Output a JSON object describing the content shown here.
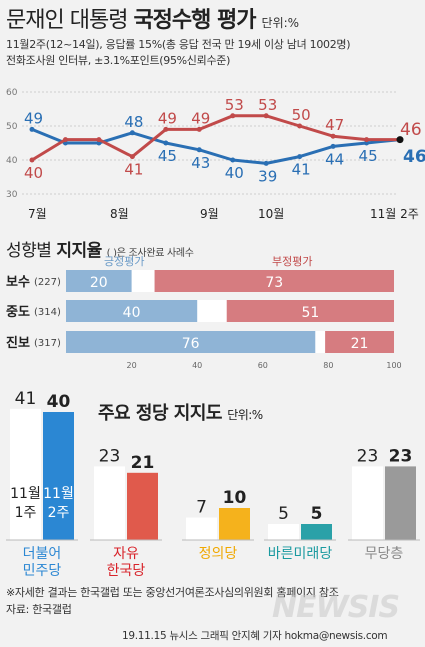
{
  "header": {
    "title_main": "문재인 대통령 ",
    "title_bold": "국정수행 평가",
    "unit": "단위:%",
    "note1": "11월2주(12~14일), 응답률 15%(총 응답 전국 만 19세 이상 남녀 1002명)",
    "note2": "전화조사원 인터뷰, ±3.1%포인트(95%신뢰수준)"
  },
  "line_section": {
    "y_ticks": [
      "60",
      "50",
      "40",
      "30"
    ],
    "x_labels": [
      "7월",
      "8월",
      "9월",
      "10월",
      "11월 2주"
    ],
    "end_labels": {
      "negative": "46",
      "positive": "46"
    }
  },
  "bar_section": {
    "title_pre": "성향별 ",
    "title_bold": "지지율",
    "title_note": "( )은 조사완료 사례수",
    "legend_pos": "긍정평가",
    "legend_neg": "부정평가",
    "x_ticks": [
      "20",
      "40",
      "60",
      "80",
      "100"
    ]
  },
  "party_section": {
    "title": "주요 정당 지지도",
    "unit": "단위:%",
    "week_prev": "11월 1주",
    "week_cur": "11월 2주"
  },
  "footer": {
    "note": "※자세한 결과는 한국갤럽 또는 중앙선거여론조사심의위원회 홈페이지 참조",
    "source": "자료: 한국갤럽",
    "credit": "19.11.15 뉴시스 그래픽 안지혜 기자 hokma@newsis.com",
    "watermark": "NEWSIS"
  },
  "colors": {
    "positive_line": "#2a6fb4",
    "negative_line": "#c14a4a",
    "bar_positive": "#8fb4d6",
    "bar_negative": "#d67c80"
  },
  "chart_data": [
    {
      "type": "line",
      "title": "문재인 대통령 국정수행 평가",
      "ylim": [
        30,
        60
      ],
      "series": [
        {
          "name": "긍정평가",
          "values": [
            49,
            45,
            45,
            48,
            45,
            43,
            40,
            39,
            41,
            44,
            45,
            46
          ]
        },
        {
          "name": "부정평가",
          "values": [
            40,
            46,
            46,
            41,
            49,
            49,
            53,
            53,
            50,
            47,
            46,
            46
          ]
        }
      ],
      "labeled_points": {
        "positive": [
          49,
          48,
          45,
          43,
          40,
          39,
          41,
          44,
          45
        ],
        "negative": [
          40,
          41,
          49,
          49,
          53,
          53,
          50,
          47
        ]
      }
    },
    {
      "type": "bar",
      "title": "성향별 지지율",
      "categories": [
        "보수",
        "중도",
        "진보"
      ],
      "sample_sizes": [
        "(227)",
        "(314)",
        "(317)"
      ],
      "series": [
        {
          "name": "긍정평가",
          "values": [
            20,
            40,
            76
          ]
        },
        {
          "name": "부정평가",
          "values": [
            73,
            51,
            21
          ]
        }
      ],
      "xlim": [
        0,
        100
      ]
    },
    {
      "type": "bar",
      "title": "주요 정당 지지도",
      "categories": [
        "더불어 민주당",
        "자유 한국당",
        "정의당",
        "바른미래당",
        "무당층"
      ],
      "category_colors": [
        "#2b87d3",
        "#e05a4c",
        "#f5b21c",
        "#2aa1a8",
        "#9a9a9a"
      ],
      "category_label_colors": [
        "#2b87d3",
        "#d8232a",
        "#f0a800",
        "#1a9aa0",
        "#888888"
      ],
      "series": [
        {
          "name": "11월 1주",
          "values": [
            41,
            23,
            7,
            5,
            23
          ]
        },
        {
          "name": "11월 2주",
          "values": [
            40,
            21,
            10,
            5,
            23
          ]
        }
      ]
    }
  ]
}
